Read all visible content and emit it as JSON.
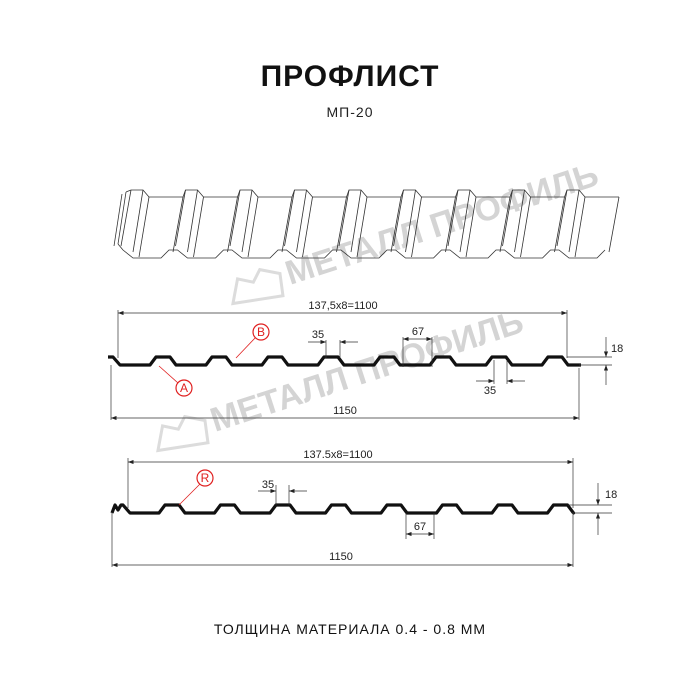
{
  "title": "ПРОФЛИСТ",
  "subtitle": "МП-20",
  "footer": "ТОЛЩИНА МАТЕРИАЛА 0.4 - 0.8 ММ",
  "watermark": "МЕТАЛЛ ПРОФИЛЬ",
  "colors": {
    "profile": "#111111",
    "marker": "#e02020",
    "watermark": "#dcdcdc"
  },
  "profile_a": {
    "pitch_dim": "137,5x8=1100",
    "total_dim": "1150",
    "top_width_dim_1": "35",
    "top_width_dim_2": "35",
    "bottom_width_dim": "67",
    "height_dim": "18",
    "marker_b": "B",
    "marker_a": "A"
  },
  "profile_r": {
    "pitch_dim": "137.5x8=1100",
    "total_dim": "1150",
    "top_width_dim": "35",
    "bottom_width_dim": "67",
    "height_dim": "18",
    "marker_r": "R"
  }
}
